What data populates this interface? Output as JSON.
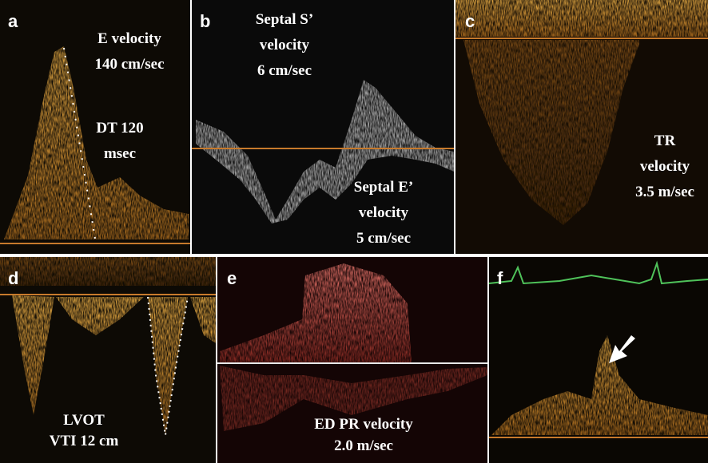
{
  "panels": [
    {
      "label": "a",
      "texts": [
        "E velocity",
        "140 cm/sec",
        "DT 120",
        "msec"
      ]
    },
    {
      "label": "b",
      "texts": [
        "Septal S’",
        "velocity",
        "6 cm/sec",
        "Septal E’",
        "velocity",
        "5 cm/sec"
      ]
    },
    {
      "label": "c",
      "texts": [
        "TR",
        "velocity",
        "3.5 m/sec"
      ]
    },
    {
      "label": "d",
      "texts": [
        "LVOT",
        "VTI 12 cm"
      ]
    },
    {
      "label": "e",
      "texts": [
        "ED PR velocity",
        "2.0 m/sec"
      ]
    },
    {
      "label": "f",
      "texts": []
    }
  ]
}
